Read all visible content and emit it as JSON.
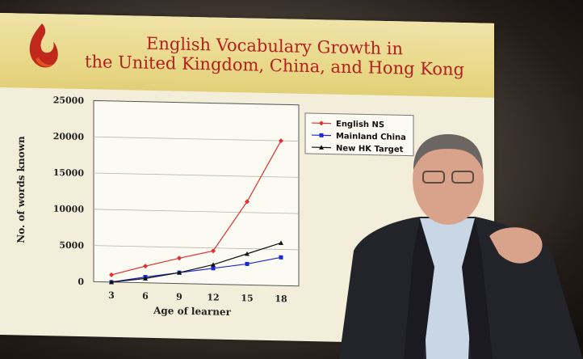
{
  "slide": {
    "title_line1": "English Vocabulary Growth in",
    "title_line2": "the United Kingdom, China, and Hong Kong"
  },
  "chart_data": {
    "type": "line",
    "title": "English Vocabulary Growth in the United Kingdom, China, and Hong Kong",
    "xlabel": "Age of learner",
    "ylabel": "No. of words known",
    "x": [
      3,
      6,
      9,
      12,
      15,
      18
    ],
    "x_ticks": [
      "3",
      "6",
      "9",
      "12",
      "15",
      "18"
    ],
    "y_ticks": [
      "0",
      "5000",
      "10000",
      "15000",
      "20000",
      "25000"
    ],
    "ylim": [
      0,
      25000
    ],
    "grid": true,
    "legend_position": "top-right",
    "series": [
      {
        "name": "English NS",
        "color": "#e03030",
        "marker": "diamond",
        "values": [
          1000,
          2300,
          3500,
          4600,
          11500,
          20000
        ]
      },
      {
        "name": "Mainland China",
        "color": "#1a2bd6",
        "marker": "square",
        "values": [
          0,
          800,
          1500,
          2200,
          2900,
          3900
        ]
      },
      {
        "name": "New HK Target",
        "color": "#111111",
        "marker": "triangle",
        "values": [
          0,
          600,
          1500,
          2700,
          4300,
          5900
        ]
      }
    ]
  }
}
